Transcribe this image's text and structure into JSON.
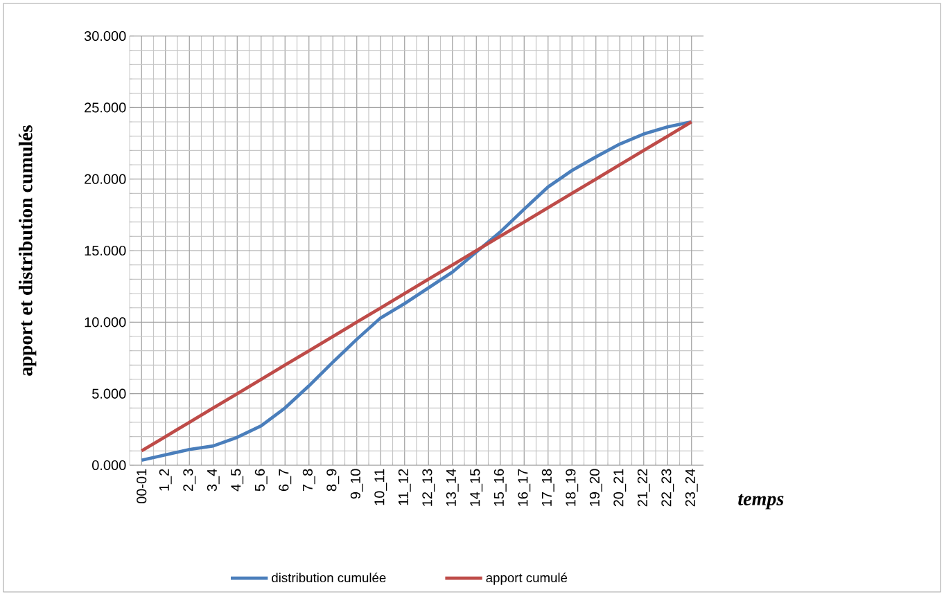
{
  "chart_data": {
    "type": "line",
    "xlabel": "temps",
    "ylabel": "apport et distribution cumulés",
    "categories": [
      "00-01",
      "1_2",
      "2_3",
      "3_4",
      "4_5",
      "5_6",
      "6_7",
      "7_8",
      "8_9",
      "9_10",
      "10_11",
      "11_12",
      "12_13",
      "13_14",
      "14_15",
      "15_16",
      "16_17",
      "17_18",
      "18_19",
      "19_20",
      "20_21",
      "21_22",
      "22_23",
      "23_24"
    ],
    "series": [
      {
        "name": "distribution cumulée",
        "color": "#4a7ebb",
        "values": [
          0.35,
          0.73,
          1.1,
          1.35,
          1.95,
          2.75,
          4.0,
          5.55,
          7.2,
          8.8,
          10.3,
          11.3,
          12.4,
          13.5,
          14.9,
          16.3,
          17.9,
          19.45,
          20.6,
          21.55,
          22.45,
          23.15,
          23.65,
          24.0
        ]
      },
      {
        "name": "apport cumulé",
        "color": "#be4b48",
        "values": [
          1,
          2,
          3,
          4,
          5,
          6,
          7,
          8,
          9,
          10,
          11,
          12,
          13,
          14,
          15,
          16,
          17,
          18,
          19,
          20,
          21,
          22,
          23,
          24
        ]
      }
    ],
    "ylim": [
      0,
      30
    ],
    "yticks": [
      {
        "value": 0,
        "label": "0.000"
      },
      {
        "value": 5,
        "label": "5.000"
      },
      {
        "value": 10,
        "label": "10.000"
      },
      {
        "value": 15,
        "label": "15.000"
      },
      {
        "value": 20,
        "label": "20.000"
      },
      {
        "value": 25,
        "label": "25.000"
      },
      {
        "value": 30,
        "label": "30.000"
      }
    ],
    "grid": true,
    "legend": "bottom"
  }
}
